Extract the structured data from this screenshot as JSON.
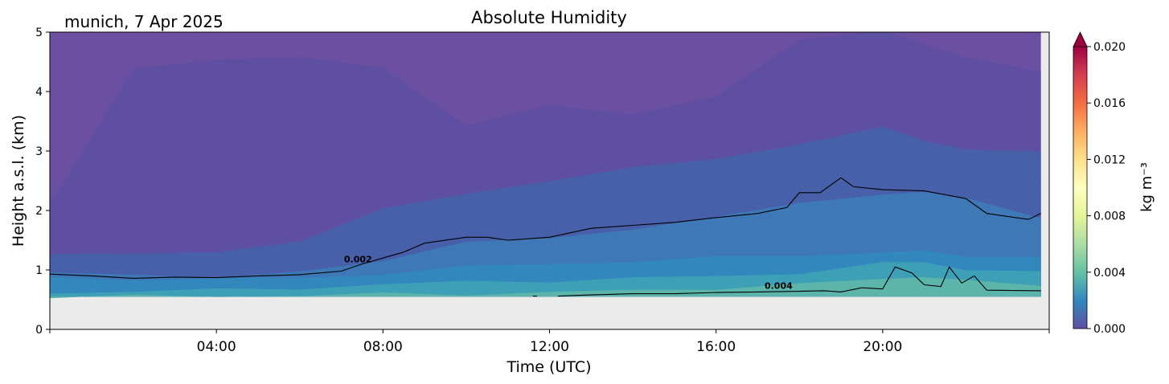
{
  "chart_data": {
    "type": "heatmap",
    "title": "Absolute Humidity",
    "location_label": "munich, 7 Apr 2025",
    "xlabel": "Time (UTC)",
    "ylabel": "Height a.s.l. (km)",
    "xlim_hours": [
      0,
      24
    ],
    "ylim_km": [
      0,
      5
    ],
    "x_ticks": [
      {
        "hour": 0,
        "label": ""
      },
      {
        "hour": 4,
        "label": "04:00"
      },
      {
        "hour": 8,
        "label": "08:00"
      },
      {
        "hour": 12,
        "label": "12:00"
      },
      {
        "hour": 16,
        "label": "16:00"
      },
      {
        "hour": 20,
        "label": "20:00"
      },
      {
        "hour": 24,
        "label": ""
      }
    ],
    "y_ticks": [
      0,
      1,
      2,
      3,
      4,
      5
    ],
    "no_data_below_km": 0.55,
    "data_end_hour": 23.8,
    "colorbar": {
      "label": "kg m⁻³",
      "range": [
        0.0,
        0.02
      ],
      "ticks": [
        "0.000",
        "0.004",
        "0.008",
        "0.012",
        "0.016",
        "0.020"
      ],
      "extend": "max",
      "colormap": "Spectral_r"
    },
    "x_hours": [
      0,
      2,
      4,
      6,
      8,
      10,
      12,
      14,
      16,
      18,
      20,
      21,
      22,
      23.8
    ],
    "isolines_km": [
      {
        "level": 0.0045,
        "color": "#5e4fa2",
        "heights": [
          2.1,
          4.4,
          4.5,
          4.6,
          4.4,
          3.4,
          3.8,
          3.6,
          3.9,
          4.9,
          5.0,
          4.8,
          4.6,
          4.3
        ]
      },
      {
        "level": 0.0025,
        "color": "#4860a9",
        "heights": [
          1.3,
          1.25,
          1.3,
          1.5,
          2.0,
          2.3,
          2.5,
          2.7,
          2.9,
          3.1,
          3.4,
          3.2,
          3.0,
          3.0
        ]
      },
      {
        "level": 0.0015,
        "color": "#3e78b6",
        "heights": [
          0.95,
          0.9,
          0.9,
          0.95,
          1.15,
          1.5,
          1.5,
          1.7,
          1.9,
          2.1,
          2.3,
          2.3,
          2.2,
          1.9
        ]
      },
      {
        "level": 0.001,
        "color": "#3288bd",
        "heights": [
          0.85,
          0.85,
          0.85,
          0.85,
          0.95,
          1.05,
          1.1,
          1.15,
          1.2,
          1.25,
          1.3,
          1.3,
          1.25,
          1.2
        ]
      },
      {
        "level": 0.0005,
        "color": "#3ea0b6",
        "heights": [
          0.62,
          0.64,
          0.66,
          0.7,
          0.75,
          0.8,
          0.82,
          0.85,
          0.9,
          0.95,
          1.1,
          1.15,
          1.0,
          0.95
        ]
      },
      {
        "level": 0.0002,
        "color": "#5bb5aa",
        "heights": [
          0.55,
          0.55,
          0.56,
          0.57,
          0.59,
          0.6,
          0.62,
          0.65,
          0.7,
          0.75,
          0.85,
          0.9,
          0.8,
          0.75
        ]
      }
    ],
    "contours": [
      {
        "level": "0.002",
        "points": [
          [
            0,
            0.93
          ],
          [
            1,
            0.9
          ],
          [
            2,
            0.86
          ],
          [
            3,
            0.88
          ],
          [
            4,
            0.87
          ],
          [
            5,
            0.9
          ],
          [
            6,
            0.92
          ],
          [
            7,
            0.98
          ],
          [
            7.5,
            1.1
          ],
          [
            8,
            1.2
          ],
          [
            8.5,
            1.3
          ],
          [
            9,
            1.45
          ],
          [
            10,
            1.55
          ],
          [
            10.5,
            1.55
          ],
          [
            11,
            1.5
          ],
          [
            12,
            1.55
          ],
          [
            13,
            1.7
          ],
          [
            14,
            1.75
          ],
          [
            15,
            1.8
          ],
          [
            16,
            1.88
          ],
          [
            17,
            1.95
          ],
          [
            17.7,
            2.05
          ],
          [
            18,
            2.3
          ],
          [
            18.5,
            2.3
          ],
          [
            19,
            2.55
          ],
          [
            19.3,
            2.4
          ],
          [
            20,
            2.35
          ],
          [
            21,
            2.33
          ],
          [
            22,
            2.2
          ],
          [
            22.5,
            1.95
          ],
          [
            23,
            1.9
          ],
          [
            23.5,
            1.85
          ],
          [
            23.8,
            1.95
          ]
        ]
      },
      {
        "level": "0.004",
        "points": [
          [
            11.6,
            0.56
          ],
          [
            11.7,
            0.56
          ]
        ]
      },
      {
        "level": "0.004",
        "points": [
          [
            12.2,
            0.56
          ],
          [
            13,
            0.58
          ],
          [
            14,
            0.6
          ],
          [
            15,
            0.6
          ],
          [
            16,
            0.62
          ],
          [
            17,
            0.63
          ],
          [
            18,
            0.64
          ],
          [
            18.6,
            0.65
          ],
          [
            19,
            0.63
          ],
          [
            19.5,
            0.7
          ],
          [
            20,
            0.68
          ],
          [
            20.3,
            1.05
          ],
          [
            20.7,
            0.95
          ],
          [
            21,
            0.75
          ],
          [
            21.4,
            0.72
          ],
          [
            21.6,
            1.05
          ],
          [
            21.9,
            0.78
          ],
          [
            22.2,
            0.9
          ],
          [
            22.5,
            0.66
          ],
          [
            23.8,
            0.65
          ]
        ]
      }
    ],
    "contour_labels": [
      {
        "text": "0.002",
        "hour": 7.4,
        "km": 1.13
      },
      {
        "text": "0.004",
        "hour": 17.5,
        "km": 0.68
      }
    ],
    "colors": {
      "nodata": "#ebebeb",
      "top": "#6b4fa0",
      "cbar_stops": [
        "#5e4fa2",
        "#3288bd",
        "#66c2a5",
        "#abdda4",
        "#e6f598",
        "#ffffbf",
        "#fee08b",
        "#fdae61",
        "#f46d43",
        "#d53e4f",
        "#9e0142"
      ]
    }
  }
}
